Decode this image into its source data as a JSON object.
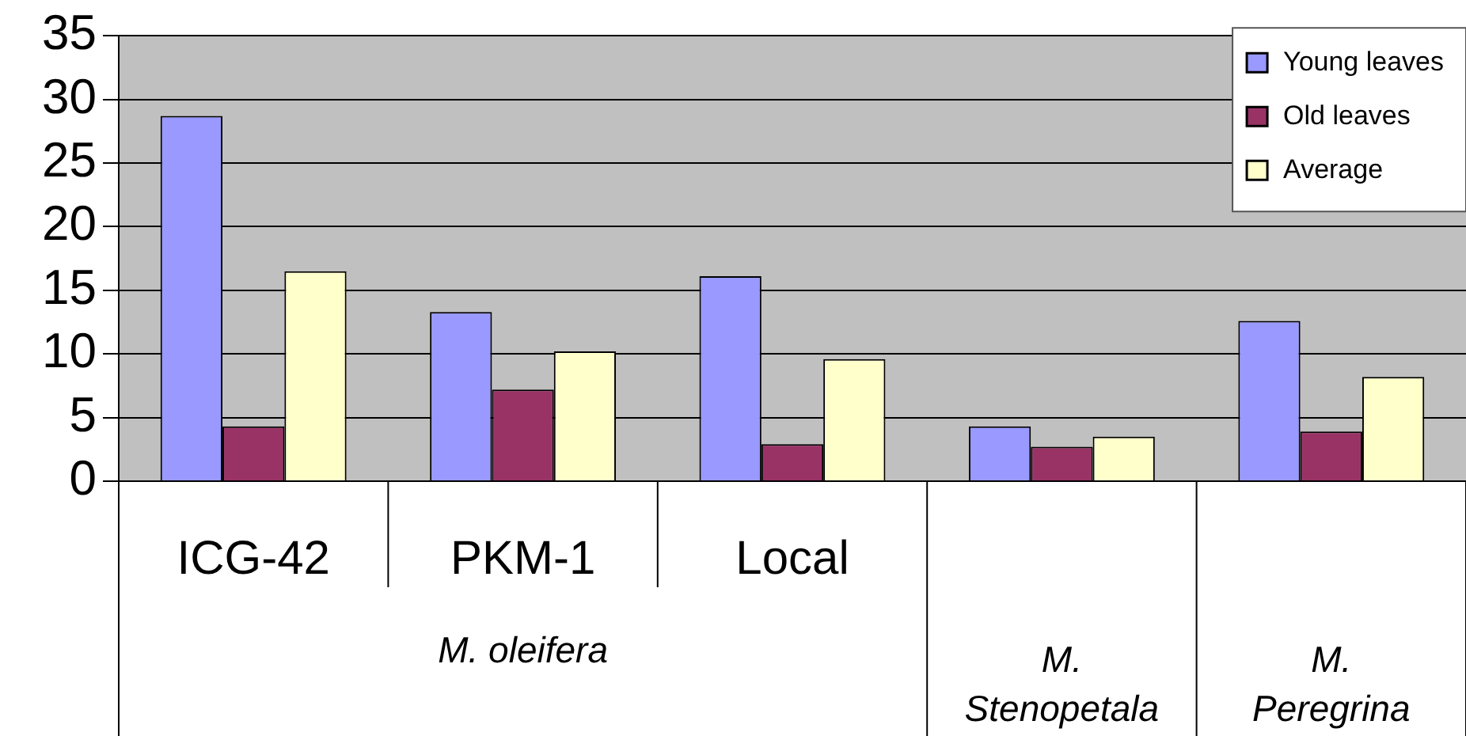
{
  "chart_data": {
    "type": "bar",
    "categories": [
      "ICG-42",
      "PKM-1",
      "Local",
      null,
      null
    ],
    "series": [
      {
        "name": "Young leaves",
        "color": "#9999ff",
        "values": [
          28.7,
          13.3,
          16.1,
          4.3,
          12.6
        ]
      },
      {
        "name": "Old leaves",
        "color": "#993366",
        "values": [
          4.3,
          7.2,
          2.9,
          2.7,
          3.9
        ]
      },
      {
        "name": "Average",
        "color": "#ffffcc",
        "values": [
          16.5,
          10.2,
          9.6,
          3.5,
          8.2
        ]
      }
    ],
    "annotations": [
      "M. oleifera",
      "M. Stenopetala",
      "M. Peregrina"
    ],
    "ylim": [
      0,
      35
    ],
    "yticks": [
      0,
      5,
      10,
      15,
      20,
      25,
      30,
      35
    ],
    "grid": "y",
    "legend": "top right"
  }
}
